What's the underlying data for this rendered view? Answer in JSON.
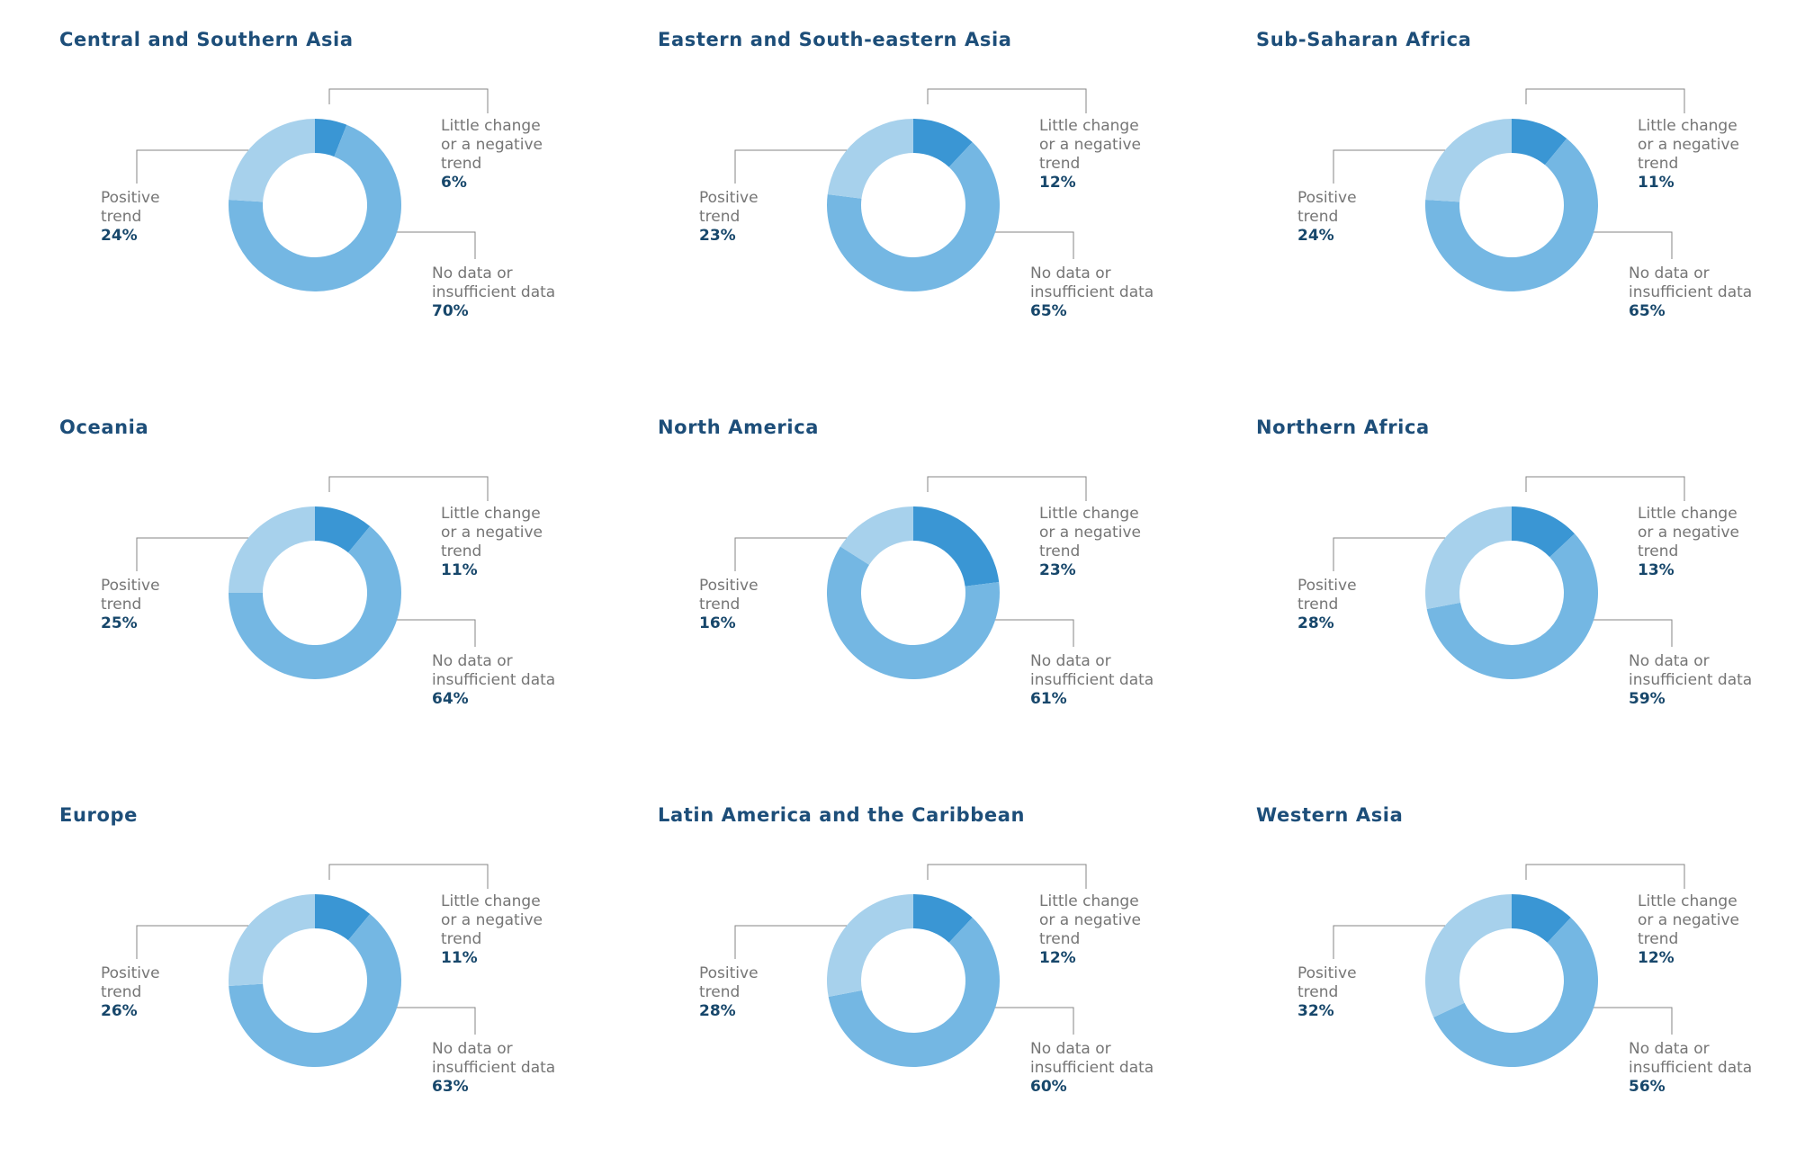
{
  "colors": {
    "little_change_slice": "#3a96d4",
    "no_data_slice": "#74b7e3",
    "positive_slice": "#a7d1ec",
    "title_text": "#1d4e79",
    "value_text": "#17476b",
    "label_text": "#757575",
    "leader_line": "#858585"
  },
  "slice_labels": {
    "little_change": [
      "Little change",
      "or a negative",
      "trend"
    ],
    "no_data": [
      "No data or",
      "insufficient data"
    ],
    "positive": [
      "Positive",
      "trend"
    ]
  },
  "charts": [
    {
      "title": "Central and Southern Asia",
      "little_change_pct": "6%",
      "no_data_pct": "70%",
      "positive_pct": "24%"
    },
    {
      "title": "Eastern and South-eastern Asia",
      "little_change_pct": "12%",
      "no_data_pct": "65%",
      "positive_pct": "23%"
    },
    {
      "title": "Sub-Saharan Africa",
      "little_change_pct": "11%",
      "no_data_pct": "65%",
      "positive_pct": "24%"
    },
    {
      "title": "Oceania",
      "little_change_pct": "11%",
      "no_data_pct": "64%",
      "positive_pct": "25%"
    },
    {
      "title": "North America",
      "little_change_pct": "23%",
      "no_data_pct": "61%",
      "positive_pct": "16%"
    },
    {
      "title": "Northern Africa",
      "little_change_pct": "13%",
      "no_data_pct": "59%",
      "positive_pct": "28%"
    },
    {
      "title": "Europe",
      "little_change_pct": "11%",
      "no_data_pct": "63%",
      "positive_pct": "26%"
    },
    {
      "title": "Latin America and the Caribbean",
      "little_change_pct": "12%",
      "no_data_pct": "60%",
      "positive_pct": "28%"
    },
    {
      "title": "Western Asia",
      "little_change_pct": "12%",
      "no_data_pct": "56%",
      "positive_pct": "32%"
    }
  ],
  "chart_data": [
    {
      "type": "pie",
      "donut": true,
      "title": "Central and Southern Asia",
      "labels": [
        "Little change or a negative trend",
        "No data or insufficient data",
        "Positive trend"
      ],
      "values": [
        6,
        70,
        24
      ],
      "unit": "percent",
      "start_angle": "top",
      "direction": "clockwise",
      "legend_position": "callout-labels"
    },
    {
      "type": "pie",
      "donut": true,
      "title": "Eastern and South-eastern Asia",
      "labels": [
        "Little change or a negative trend",
        "No data or insufficient data",
        "Positive trend"
      ],
      "values": [
        12,
        65,
        23
      ],
      "unit": "percent",
      "start_angle": "top",
      "direction": "clockwise",
      "legend_position": "callout-labels"
    },
    {
      "type": "pie",
      "donut": true,
      "title": "Sub-Saharan Africa",
      "labels": [
        "Little change or a negative trend",
        "No data or insufficient data",
        "Positive trend"
      ],
      "values": [
        11,
        65,
        24
      ],
      "unit": "percent",
      "start_angle": "top",
      "direction": "clockwise",
      "legend_position": "callout-labels"
    },
    {
      "type": "pie",
      "donut": true,
      "title": "Oceania",
      "labels": [
        "Little change or a negative trend",
        "No data or insufficient data",
        "Positive trend"
      ],
      "values": [
        11,
        64,
        25
      ],
      "unit": "percent",
      "start_angle": "top",
      "direction": "clockwise",
      "legend_position": "callout-labels"
    },
    {
      "type": "pie",
      "donut": true,
      "title": "North America",
      "labels": [
        "Little change or a negative trend",
        "No data or insufficient data",
        "Positive trend"
      ],
      "values": [
        23,
        61,
        16
      ],
      "unit": "percent",
      "start_angle": "top",
      "direction": "clockwise",
      "legend_position": "callout-labels"
    },
    {
      "type": "pie",
      "donut": true,
      "title": "Northern Africa",
      "labels": [
        "Little change or a negative trend",
        "No data or insufficient data",
        "Positive trend"
      ],
      "values": [
        13,
        59,
        28
      ],
      "unit": "percent",
      "start_angle": "top",
      "direction": "clockwise",
      "legend_position": "callout-labels"
    },
    {
      "type": "pie",
      "donut": true,
      "title": "Europe",
      "labels": [
        "Little change or a negative trend",
        "No data or insufficient data",
        "Positive trend"
      ],
      "values": [
        11,
        63,
        26
      ],
      "unit": "percent",
      "start_angle": "top",
      "direction": "clockwise",
      "legend_position": "callout-labels"
    },
    {
      "type": "pie",
      "donut": true,
      "title": "Latin America and the Caribbean",
      "labels": [
        "Little change or a negative trend",
        "No data or insufficient data",
        "Positive trend"
      ],
      "values": [
        12,
        60,
        28
      ],
      "unit": "percent",
      "start_angle": "top",
      "direction": "clockwise",
      "legend_position": "callout-labels"
    },
    {
      "type": "pie",
      "donut": true,
      "title": "Western Asia",
      "labels": [
        "Little change or a negative trend",
        "No data or insufficient data",
        "Positive trend"
      ],
      "values": [
        12,
        56,
        32
      ],
      "unit": "percent",
      "start_angle": "top",
      "direction": "clockwise",
      "legend_position": "callout-labels"
    }
  ]
}
